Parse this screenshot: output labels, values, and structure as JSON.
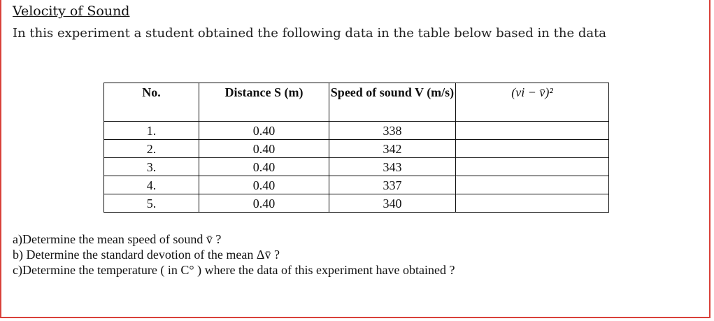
{
  "header": {
    "title": "Velocity of Sound",
    "intro": "In this experiment a student obtained the following data in the table below based in the data"
  },
  "table": {
    "columns": [
      "No.",
      "Distance S (m)",
      "Speed of sound V (m/s)",
      "(vi − v̄)²"
    ],
    "rows": [
      [
        "1.",
        "0.40",
        "338"
      ],
      [
        "2.",
        "0.40",
        "342"
      ],
      [
        "3.",
        "0.40",
        "343"
      ],
      [
        "4.",
        "0.40",
        "337"
      ],
      [
        "5.",
        "0.40",
        "340"
      ]
    ]
  },
  "questions": [
    "a)Determine the mean speed of sound v̄ ?",
    "b) Determine the standard devotion of the mean Δv̄ ?",
    "c)Determine the temperature ( in C° ) where the data of this experiment have obtained ?"
  ]
}
